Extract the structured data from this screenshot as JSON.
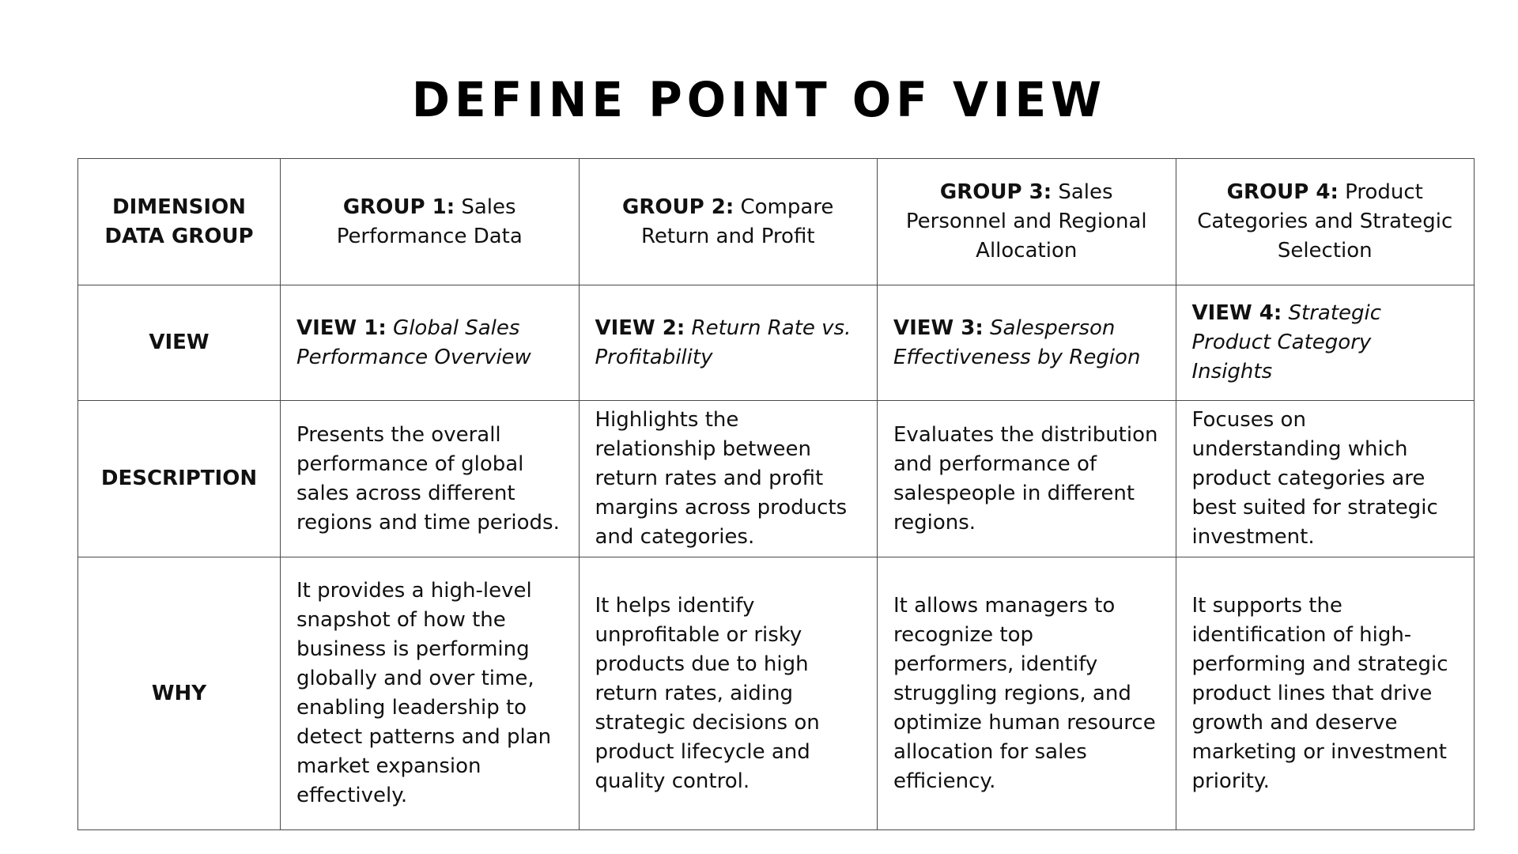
{
  "title": "DEFINE POINT OF VIEW",
  "table": {
    "row_headers": {
      "dimension": "DIMENSION DATA GROUP",
      "view": "VIEW",
      "description": "DESCRIPTION",
      "why": "WHY"
    },
    "columns": [
      {
        "group_label": "GROUP 1:",
        "group_name": "Sales Performance Data",
        "view_label": "VIEW 1:",
        "view_name": "Global Sales Performance Overview",
        "description": "Presents the overall performance of global sales across different regions and time periods.",
        "why": "It provides a high-level snapshot of how the business is performing globally and over time, enabling leadership to detect patterns and plan market expansion effectively."
      },
      {
        "group_label": "GROUP 2:",
        "group_name": "Compare Return and Profit",
        "view_label": "VIEW 2:",
        "view_name": "Return Rate vs. Profitability",
        "description": "Highlights the relationship between return rates and profit margins across products and categories.",
        "why": "It helps identify unprofitable or risky products due to high return rates, aiding strategic decisions on product lifecycle and quality control."
      },
      {
        "group_label": "GROUP 3:",
        "group_name": "Sales Personnel and Regional Allocation",
        "view_label": "VIEW 3:",
        "view_name": "Salesperson Effectiveness by Region",
        "description": "Evaluates the distribution and performance of salespeople in different regions.",
        "why": "It allows managers to recognize top performers, identify struggling regions, and optimize human resource allocation for sales efficiency."
      },
      {
        "group_label": "GROUP 4:",
        "group_name": "Product Categories and Strategic Selection",
        "view_label": "VIEW 4:",
        "view_name": "Strategic Product Category Insights",
        "description": "Focuses on understanding which product categories are best suited for strategic investment.",
        "why": "It supports the identification of high-performing and strategic product lines that drive growth and deserve marketing or investment priority."
      }
    ]
  }
}
